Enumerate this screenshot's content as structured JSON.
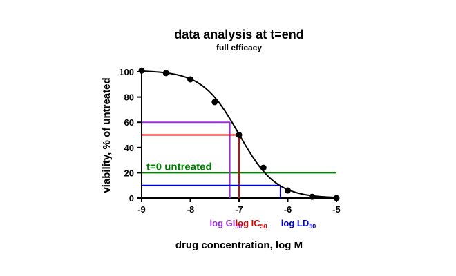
{
  "chart_data": {
    "type": "line",
    "title": "data analysis at t=end",
    "subtitle": "full efficacy",
    "xlabel": "drug concentration, log M",
    "ylabel": "viability, % of untreated",
    "xlim": [
      -9,
      -5
    ],
    "ylim": [
      0,
      100
    ],
    "x_ticks": [
      -9,
      -8,
      -7,
      -6,
      -5
    ],
    "y_ticks": [
      0,
      20,
      40,
      60,
      80,
      100
    ],
    "grid": false,
    "points": {
      "x": [
        -9,
        -8.5,
        -8,
        -7.5,
        -7,
        -6.5,
        -6,
        -5.5,
        -5
      ],
      "y": [
        101,
        99,
        94,
        76,
        50,
        24,
        6,
        1,
        0
      ]
    },
    "fit": {
      "top": 101,
      "bottom": 0,
      "log_ec50": -7.0,
      "hill": 1.15
    },
    "reference_lines": [
      {
        "label": "t=0 untreated",
        "y": 20,
        "color": "#008000"
      }
    ],
    "markers": [
      {
        "label": "log GI",
        "sub": "50",
        "y": 60,
        "x": -7.19,
        "color": "#9b30d9"
      },
      {
        "label": "log IC",
        "sub": "50",
        "y": 50,
        "x": -7.0,
        "color": "#e00000"
      },
      {
        "label": "log LD",
        "sub": "50",
        "y": 10,
        "x": -6.15,
        "color": "#0000e0"
      }
    ],
    "colors": {
      "curve": "#000000",
      "points": "#000000"
    }
  }
}
